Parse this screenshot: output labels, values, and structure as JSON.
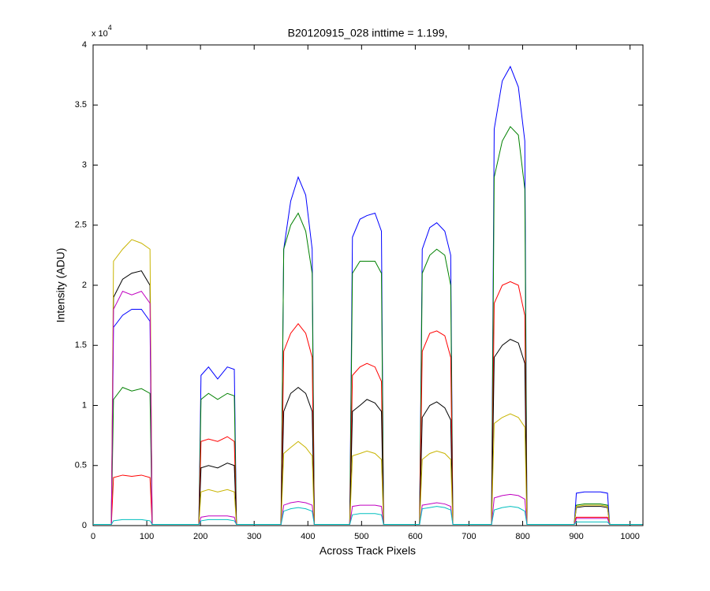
{
  "chart_data": {
    "type": "line",
    "title": "B20120915_028 inttime = 1.199,",
    "x_label": "Across Track Pixels",
    "y_label": "Intensity (ADU)",
    "y_scale_label": {
      "base": "x 10",
      "exponent": "4"
    },
    "x": [
      0,
      34,
      38,
      55,
      72,
      90,
      106,
      110,
      197,
      201,
      215,
      232,
      250,
      263,
      267,
      350,
      355,
      368,
      382,
      396,
      408,
      412,
      478,
      483,
      497,
      510,
      525,
      537,
      541,
      608,
      613,
      627,
      640,
      655,
      666,
      670,
      742,
      747,
      762,
      777,
      792,
      804,
      808,
      896,
      900,
      915,
      930,
      945,
      958,
      962,
      1023
    ],
    "series": [
      {
        "color": "#0000ff",
        "values": [
          0.01,
          0.01,
          1.65,
          1.75,
          1.8,
          1.8,
          1.7,
          0.01,
          0.01,
          1.25,
          1.32,
          1.22,
          1.32,
          1.3,
          0.01,
          0.01,
          2.3,
          2.7,
          2.9,
          2.75,
          2.3,
          0.01,
          0.01,
          2.4,
          2.55,
          2.58,
          2.6,
          2.45,
          0.01,
          0.01,
          2.3,
          2.48,
          2.52,
          2.45,
          2.25,
          0.01,
          0.01,
          3.3,
          3.7,
          3.82,
          3.65,
          3.2,
          0.01,
          0.01,
          0.27,
          0.28,
          0.28,
          0.28,
          0.27,
          0.01,
          0.01
        ]
      },
      {
        "color": "#008000",
        "values": [
          0.01,
          0.01,
          1.05,
          1.15,
          1.12,
          1.14,
          1.1,
          0.01,
          0.01,
          1.05,
          1.1,
          1.05,
          1.1,
          1.08,
          0.01,
          0.01,
          2.3,
          2.5,
          2.6,
          2.45,
          2.1,
          0.01,
          0.01,
          2.1,
          2.2,
          2.2,
          2.2,
          2.1,
          0.01,
          0.01,
          2.1,
          2.25,
          2.3,
          2.25,
          2.0,
          0.01,
          0.01,
          2.9,
          3.2,
          3.32,
          3.25,
          2.8,
          0.01,
          0.01,
          0.17,
          0.18,
          0.18,
          0.18,
          0.17,
          0.01,
          0.01
        ]
      },
      {
        "color": "#ff0000",
        "values": [
          0.01,
          0.01,
          0.4,
          0.42,
          0.41,
          0.42,
          0.4,
          0.01,
          0.01,
          0.7,
          0.72,
          0.7,
          0.74,
          0.7,
          0.01,
          0.01,
          1.45,
          1.6,
          1.68,
          1.6,
          1.4,
          0.01,
          0.01,
          1.25,
          1.32,
          1.35,
          1.32,
          1.2,
          0.01,
          0.01,
          1.45,
          1.6,
          1.62,
          1.58,
          1.4,
          0.01,
          0.01,
          1.85,
          2.0,
          2.03,
          2.0,
          1.75,
          0.01,
          0.01,
          0.07,
          0.07,
          0.07,
          0.07,
          0.07,
          0.01,
          0.01
        ]
      },
      {
        "color": "#000000",
        "values": [
          0.01,
          0.01,
          1.9,
          2.05,
          2.1,
          2.12,
          2.0,
          0.01,
          0.01,
          0.48,
          0.5,
          0.48,
          0.52,
          0.5,
          0.01,
          0.01,
          0.95,
          1.1,
          1.15,
          1.1,
          0.95,
          0.01,
          0.01,
          0.95,
          1.0,
          1.05,
          1.02,
          0.95,
          0.01,
          0.01,
          0.9,
          1.0,
          1.03,
          0.98,
          0.88,
          0.01,
          0.01,
          1.4,
          1.5,
          1.55,
          1.52,
          1.35,
          0.01,
          0.01,
          0.15,
          0.16,
          0.16,
          0.16,
          0.15,
          0.01,
          0.01
        ]
      },
      {
        "color": "#c8b400",
        "values": [
          0.01,
          0.01,
          2.2,
          2.3,
          2.38,
          2.35,
          2.3,
          0.01,
          0.01,
          0.28,
          0.3,
          0.28,
          0.3,
          0.28,
          0.01,
          0.01,
          0.6,
          0.65,
          0.7,
          0.65,
          0.58,
          0.01,
          0.01,
          0.58,
          0.6,
          0.62,
          0.6,
          0.55,
          0.01,
          0.01,
          0.55,
          0.6,
          0.62,
          0.6,
          0.55,
          0.01,
          0.01,
          0.85,
          0.9,
          0.93,
          0.9,
          0.82,
          0.01,
          0.01,
          0.16,
          0.17,
          0.17,
          0.17,
          0.16,
          0.01,
          0.01
        ]
      },
      {
        "color": "#c000c0",
        "values": [
          0.01,
          0.01,
          1.8,
          1.95,
          1.92,
          1.95,
          1.85,
          0.01,
          0.01,
          0.07,
          0.08,
          0.08,
          0.08,
          0.07,
          0.01,
          0.01,
          0.17,
          0.19,
          0.2,
          0.19,
          0.17,
          0.01,
          0.01,
          0.16,
          0.17,
          0.17,
          0.17,
          0.16,
          0.01,
          0.01,
          0.17,
          0.18,
          0.19,
          0.18,
          0.16,
          0.01,
          0.01,
          0.23,
          0.25,
          0.26,
          0.25,
          0.22,
          0.01,
          0.01,
          0.06,
          0.06,
          0.06,
          0.06,
          0.06,
          0.01,
          0.01
        ]
      },
      {
        "color": "#00bfbf",
        "values": [
          0.01,
          0.01,
          0.04,
          0.05,
          0.05,
          0.05,
          0.04,
          0.01,
          0.01,
          0.04,
          0.05,
          0.05,
          0.05,
          0.04,
          0.01,
          0.01,
          0.12,
          0.14,
          0.15,
          0.14,
          0.12,
          0.01,
          0.01,
          0.09,
          0.1,
          0.1,
          0.1,
          0.09,
          0.01,
          0.01,
          0.14,
          0.15,
          0.16,
          0.15,
          0.13,
          0.01,
          0.01,
          0.13,
          0.15,
          0.16,
          0.15,
          0.12,
          0.01,
          0.01,
          0.03,
          0.03,
          0.03,
          0.03,
          0.03,
          0.01,
          0.01
        ]
      }
    ],
    "xlim": [
      0,
      1024
    ],
    "ylim": [
      0,
      4
    ],
    "xticks": [
      0,
      100,
      200,
      300,
      400,
      500,
      600,
      700,
      800,
      900,
      1000
    ],
    "yticks": [
      0,
      0.5,
      1,
      1.5,
      2,
      2.5,
      3,
      3.5,
      4
    ]
  }
}
